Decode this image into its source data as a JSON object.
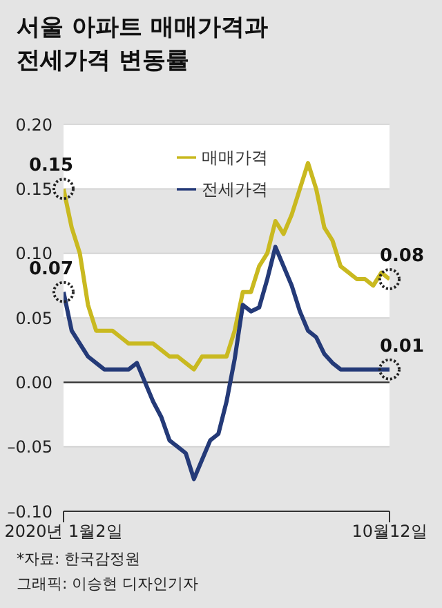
{
  "chart_data": {
    "type": "line",
    "title": "서울 아파트 매매가격과 전세가격 변동률",
    "categories": [
      "2020년 1월2일",
      null,
      null,
      null,
      null,
      null,
      null,
      null,
      null,
      null,
      null,
      null,
      null,
      null,
      null,
      null,
      null,
      null,
      null,
      null,
      null,
      null,
      null,
      null,
      null,
      null,
      null,
      null,
      null,
      null,
      null,
      null,
      null,
      null,
      null,
      null,
      null,
      null,
      null,
      null,
      "10월12일"
    ],
    "series": [
      {
        "name": "매매가격",
        "color": "#c9b920",
        "values": [
          0.15,
          0.12,
          0.1,
          0.06,
          0.04,
          0.04,
          0.04,
          0.035,
          0.03,
          0.03,
          0.03,
          0.03,
          0.025,
          0.02,
          0.02,
          0.015,
          0.01,
          0.02,
          0.02,
          0.02,
          0.02,
          0.04,
          0.07,
          0.07,
          0.09,
          0.1,
          0.125,
          0.115,
          0.13,
          0.15,
          0.17,
          0.15,
          0.12,
          0.11,
          0.09,
          0.085,
          0.08,
          0.08,
          0.075,
          0.085,
          0.08
        ],
        "value_labels": [
          "0.15",
          null,
          null,
          null,
          null,
          null,
          null,
          null,
          null,
          null,
          null,
          null,
          null,
          null,
          null,
          null,
          null,
          null,
          null,
          null,
          null,
          null,
          null,
          null,
          null,
          null,
          null,
          null,
          null,
          null,
          null,
          null,
          null,
          null,
          null,
          null,
          null,
          null,
          null,
          null,
          "0.08"
        ]
      },
      {
        "name": "전세가격",
        "color": "#243a78",
        "values": [
          0.07,
          0.04,
          0.03,
          0.02,
          0.015,
          0.01,
          0.01,
          0.01,
          0.01,
          0.015,
          0.0,
          -0.015,
          -0.027,
          -0.045,
          -0.05,
          -0.055,
          -0.075,
          -0.06,
          -0.045,
          -0.04,
          -0.015,
          0.018,
          0.06,
          0.055,
          0.058,
          0.08,
          0.105,
          0.09,
          0.075,
          0.055,
          0.04,
          0.035,
          0.022,
          0.015,
          0.01,
          0.01,
          0.01,
          0.01,
          0.01,
          0.01,
          0.01
        ],
        "value_labels": [
          "0.07",
          null,
          null,
          null,
          null,
          null,
          null,
          null,
          null,
          null,
          null,
          null,
          null,
          null,
          null,
          null,
          null,
          null,
          null,
          null,
          null,
          null,
          null,
          null,
          null,
          null,
          null,
          null,
          null,
          null,
          null,
          null,
          null,
          null,
          null,
          null,
          null,
          null,
          null,
          null,
          "0.01"
        ]
      }
    ],
    "ylim": [
      -0.1,
      0.2
    ],
    "yticks": [
      {
        "value": 0.2,
        "label": "0.20"
      },
      {
        "value": 0.15,
        "label": "0.15"
      },
      {
        "value": 0.1,
        "label": "0.10"
      },
      {
        "value": 0.05,
        "label": "0.05"
      },
      {
        "value": 0,
        "label": "0.00"
      },
      {
        "value": -0.05,
        "label": "–0.05"
      },
      {
        "value": -0.1,
        "label": "–0.10"
      }
    ],
    "ref_lines": [
      {
        "axis": "y",
        "value": 0,
        "color": "#333333"
      }
    ],
    "grid": "y",
    "legend": "top",
    "marker": "none",
    "line_style": "solid",
    "annotations": [
      "*자료: 한국감정원",
      "그래픽: 이승현 디자인기자"
    ]
  }
}
